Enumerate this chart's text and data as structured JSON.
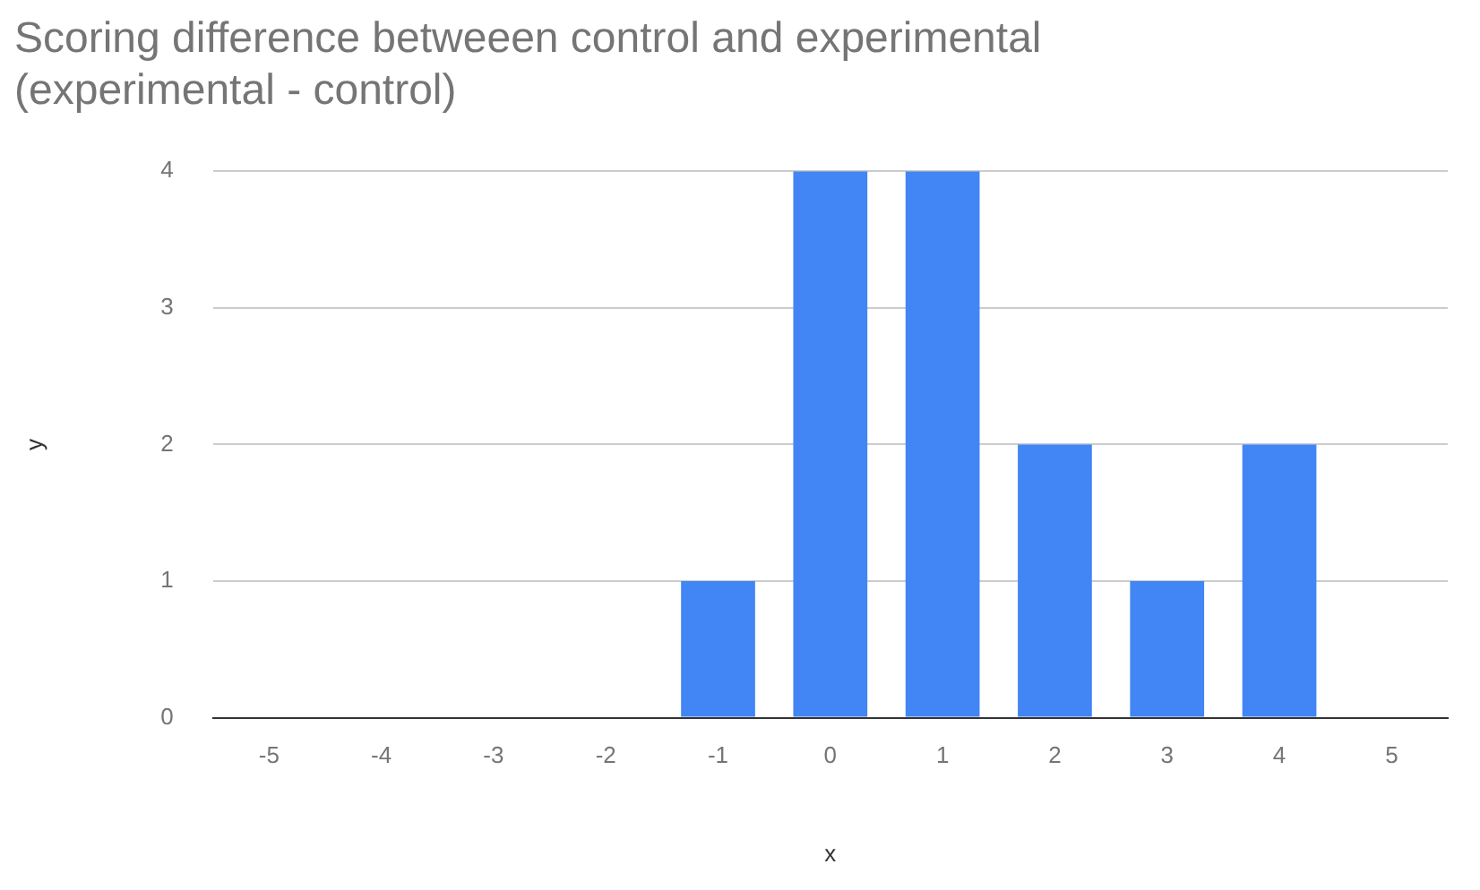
{
  "chart_data": {
    "type": "bar",
    "title": "Scoring difference betweeen control and experimental\n(experimental - control)",
    "xlabel": "x",
    "ylabel": "y",
    "categories": [
      "-5",
      "-4",
      "-3",
      "-2",
      "-1",
      "0",
      "1",
      "2",
      "3",
      "4",
      "5"
    ],
    "values": [
      0,
      0,
      0,
      0,
      1,
      4,
      4,
      2,
      1,
      2,
      0
    ],
    "color": "#4285f4",
    "ylim": [
      0,
      4
    ],
    "yticks": [
      0,
      1,
      2,
      3,
      4
    ],
    "grid": "y",
    "legend": false
  }
}
